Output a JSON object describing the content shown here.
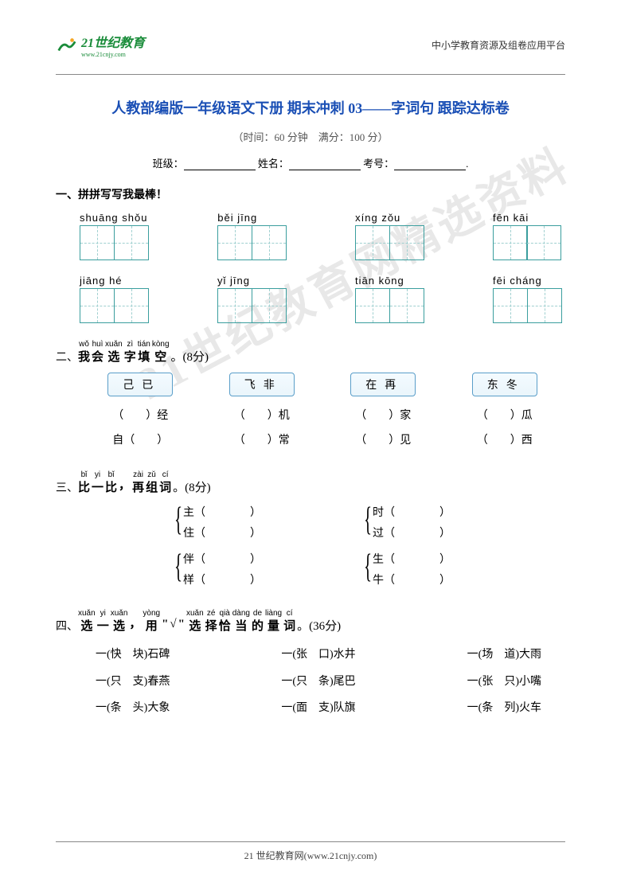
{
  "header": {
    "logo_text": "21世纪教育",
    "logo_sub": "www.21cnjy.com",
    "right_text": "中小学教育资源及组卷应用平台",
    "logo_color": "#1a8c3a"
  },
  "title": "人教部编版一年级语文下册 期末冲刺 03——字词句  跟踪达标卷",
  "title_color": "#1a4fb5",
  "subtitle": "（时间：60 分钟　满分：100 分）",
  "info": {
    "class_label": "班级：",
    "name_label": "姓名：",
    "id_label": "考号："
  },
  "sec1": {
    "num": "一、",
    "title": "拼拼写写我最棒！",
    "row1": [
      {
        "py": "shuāng shǒu",
        "cells": 2
      },
      {
        "py": "běi   jīng",
        "cells": 2
      },
      {
        "py": "xíng   zǒu",
        "cells": 2
      },
      {
        "py": "fēn    kāi",
        "cells": 2
      }
    ],
    "row2": [
      {
        "py": "jiāng   hé",
        "cells": 2
      },
      {
        "py": "yǐ   jīng",
        "cells": 2
      },
      {
        "py": "tiān   kōng",
        "cells": 2
      },
      {
        "py": "fēi  cháng",
        "cells": 2
      }
    ]
  },
  "sec2": {
    "num": "二、",
    "ruby": [
      {
        "py": "wǒ",
        "ch": "我"
      },
      {
        "py": "huì",
        "ch": "会"
      },
      {
        "py": "xuǎn",
        "ch": "选"
      },
      {
        "py": "zì",
        "ch": "字"
      },
      {
        "py": "tián",
        "ch": "填"
      },
      {
        "py": "kòng",
        "ch": "空"
      }
    ],
    "tail": "。(8分)",
    "cols": [
      {
        "box": "己已",
        "l1": "（　　）经",
        "l2": "自（　　）"
      },
      {
        "box": "飞非",
        "l1": "（　　）机",
        "l2": "（　　）常"
      },
      {
        "box": "在再",
        "l1": "（　　）家",
        "l2": "（　　）见"
      },
      {
        "box": "东冬",
        "l1": "（　　）瓜",
        "l2": "（　　）西"
      }
    ]
  },
  "sec3": {
    "num": "三、",
    "ruby": [
      {
        "py": "bǐ",
        "ch": "比"
      },
      {
        "py": "yi",
        "ch": "一"
      },
      {
        "py": "bǐ",
        "ch": "比"
      },
      {
        "py": "",
        "ch": "，"
      },
      {
        "py": "zài",
        "ch": "再"
      },
      {
        "py": "zǔ",
        "ch": "组"
      },
      {
        "py": "cí",
        "ch": "词"
      }
    ],
    "tail": "。(8分)",
    "group1": {
      "left": [
        "主（　　　　）",
        "住（　　　　）"
      ],
      "right": [
        "时（　　　　）",
        "过（　　　　）"
      ]
    },
    "group2": {
      "left": [
        "伴（　　　　）",
        "样（　　　　）"
      ],
      "right": [
        "生（　　　　）",
        "牛（　　　　）"
      ]
    }
  },
  "sec4": {
    "num": "四、",
    "ruby": [
      {
        "py": "xuǎn",
        "ch": "选"
      },
      {
        "py": "yi",
        "ch": "一"
      },
      {
        "py": "xuǎn",
        "ch": "选"
      },
      {
        "py": "",
        "ch": "，"
      },
      {
        "py": "yòng",
        "ch": "用"
      },
      {
        "py": "",
        "ch": "\""
      },
      {
        "py": "",
        "ch": "√"
      },
      {
        "py": "",
        "ch": "\""
      },
      {
        "py": "xuǎn",
        "ch": "选"
      },
      {
        "py": "zé",
        "ch": "择"
      },
      {
        "py": "qià",
        "ch": "恰"
      },
      {
        "py": "dàng",
        "ch": "当"
      },
      {
        "py": "de",
        "ch": "的"
      },
      {
        "py": "liàng",
        "ch": "量"
      },
      {
        "py": "cí",
        "ch": "词"
      }
    ],
    "tail": "。(36分)",
    "rows": [
      [
        "一(快　块)石碑",
        "一(张　口)水井",
        "一(场　道)大雨"
      ],
      [
        "一(只　支)春燕",
        "一(只　条)尾巴",
        "一(张　只)小嘴"
      ],
      [
        "一(条　头)大象",
        "一(面　支)队旗",
        "一(条　列)火车"
      ]
    ]
  },
  "watermark": "21世纪教育网精选资料",
  "footer": "21 世纪教育网(www.21cnjy.com)"
}
